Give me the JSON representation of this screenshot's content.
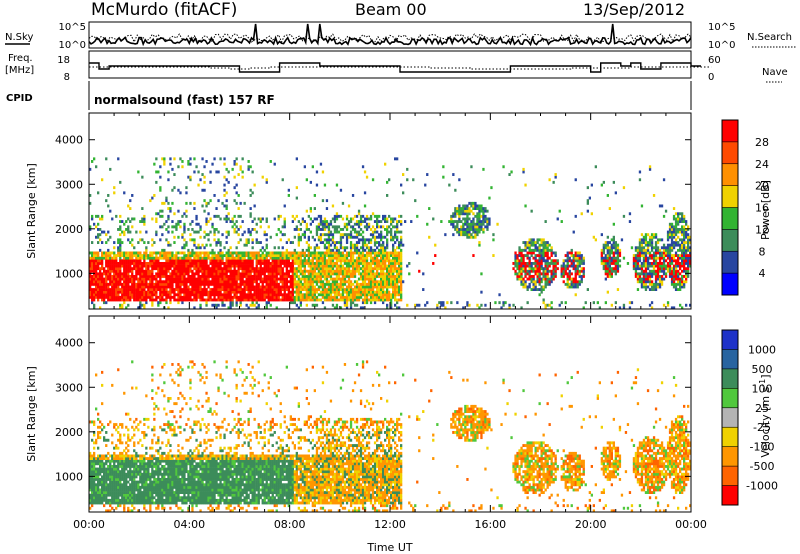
{
  "header": {
    "station": "McMurdo (fitACF)",
    "beam": "Beam 00",
    "date": "13/Sep/2012"
  },
  "mini_panels": {
    "nsky_label": "N.Sky",
    "nsky_ticks": [
      "10^5",
      "10^0"
    ],
    "nsearch_label": "N.Search",
    "nsearch_ticks": [
      "10^5",
      "10^0"
    ],
    "freq_label_1": "Freq.",
    "freq_label_2": "[MHz]",
    "freq_ticks": [
      "18",
      "8"
    ],
    "nave_label": "Nave",
    "nave_ticks": [
      "60",
      "0"
    ],
    "cpid_label": "CPID",
    "cpid_text": "normalsound (fast) 157 RF"
  },
  "chart_data": [
    {
      "type": "heatmap",
      "name": "power",
      "ylabel": "Slant Range [km]",
      "yticks": [
        1000,
        2000,
        3000,
        4000
      ],
      "ylim": [
        200,
        4600
      ],
      "xlim_hours": [
        0,
        24
      ],
      "colorbar": {
        "label": "Power [dB]",
        "tick_labels": [
          "28",
          "24",
          "20",
          "16",
          "12",
          "8",
          "4"
        ],
        "colors": [
          "#ff0000",
          "#ff4a00",
          "#ff9000",
          "#f0d200",
          "#32b432",
          "#3c8c5a",
          "#2846a0",
          "#0000ff"
        ]
      }
    },
    {
      "type": "heatmap",
      "name": "velocity",
      "ylabel": "Slant Range [km]",
      "yticks": [
        1000,
        2000,
        3000,
        4000
      ],
      "ylim": [
        200,
        4600
      ],
      "xlim_hours": [
        0,
        24
      ],
      "xlabel": "Time UT",
      "xtick_labels": [
        "00:00",
        "04:00",
        "08:00",
        "12:00",
        "16:00",
        "20:00",
        "00:00"
      ],
      "colorbar": {
        "label": "Velocity [m s^-1]",
        "tick_labels": [
          "1000",
          "500",
          "100",
          "25",
          "-25",
          "-100",
          "-500",
          "-1000"
        ],
        "colors": [
          "#1e32c8",
          "#2864a0",
          "#3c8c5a",
          "#50c83c",
          "#b4b4b4",
          "#f0d200",
          "#ff9600",
          "#ff6400",
          "#ff0000"
        ]
      }
    }
  ],
  "colors": {
    "power_scale": [
      "#ff0000",
      "#ff4a00",
      "#ff9000",
      "#f0d200",
      "#32b432",
      "#3c8c5a",
      "#2846a0",
      "#0000ff"
    ],
    "velocity_scale": [
      "#1e32c8",
      "#2864a0",
      "#3c8c5a",
      "#50c83c",
      "#b4b4b4",
      "#f0d200",
      "#ff9600",
      "#ff6400",
      "#ff0000"
    ]
  }
}
